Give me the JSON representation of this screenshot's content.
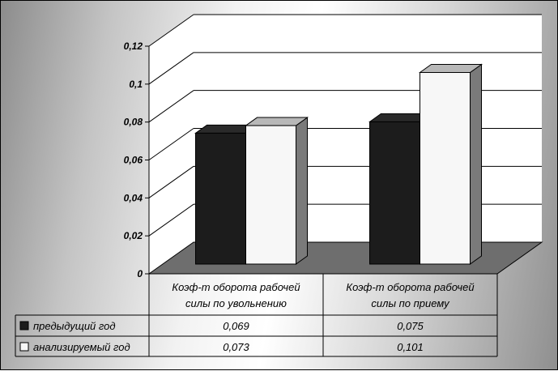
{
  "chart_data": {
    "type": "bar",
    "categories": [
      "Коэф-т оборота рабочей силы по увольнению",
      "Коэф-т оборота рабочей силы по приему"
    ],
    "category_lines": [
      [
        "Коэф-т оборота рабочей",
        "силы по увольнению"
      ],
      [
        "Коэф-т оборота рабочей",
        "силы по приему"
      ]
    ],
    "series": [
      {
        "name": "предыдущий год",
        "values": [
          0.069,
          0.075
        ],
        "labels": [
          "0,069",
          "0,075"
        ],
        "color": "#1c1c1c",
        "side_color": "#0a0a0a",
        "top_color": "#2a2a2a"
      },
      {
        "name": "анализируемый год",
        "values": [
          0.073,
          0.101
        ],
        "labels": [
          "0,073",
          "0,101"
        ],
        "color": "#f7f7f7",
        "side_color": "#7a7a7a",
        "top_color": "#b8b8b8"
      }
    ],
    "ylim": [
      0,
      0.12
    ],
    "yticks": [
      0,
      0.02,
      0.04,
      0.06,
      0.08,
      0.1,
      0.12
    ],
    "ytick_labels": [
      "0",
      "0,02",
      "0,04",
      "0,06",
      "0,08",
      "0,1",
      "0,12"
    ],
    "gridlines": true,
    "legend": "data-table-bottom",
    "xlabel": "",
    "ylabel": "",
    "title": ""
  }
}
